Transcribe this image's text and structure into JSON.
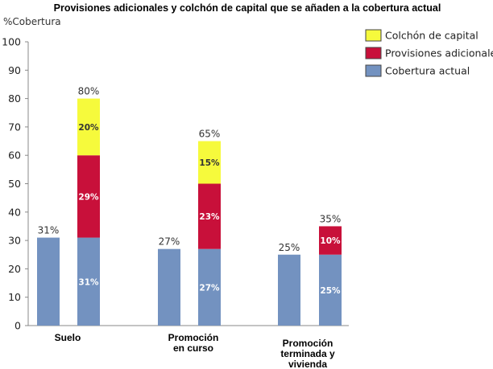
{
  "chart_data": {
    "type": "bar",
    "stacked": true,
    "title": "Provisiones adicionales y colchón de capital  que se añaden a la cobertura actual",
    "ylabel": "%Cobertura",
    "xlabel": "",
    "ylim": [
      0,
      100
    ],
    "yticks": [
      0,
      10,
      20,
      30,
      40,
      50,
      60,
      70,
      80,
      90,
      100
    ],
    "grid": false,
    "legend_position": "top-right",
    "categories": [
      [
        "Suelo"
      ],
      [
        "Promoción",
        "en curso"
      ],
      [
        "Promoción",
        "terminada y",
        "vivienda"
      ]
    ],
    "series": [
      {
        "name": "Cobertura actual",
        "color": "#7392c0",
        "values": [
          31,
          27,
          25
        ],
        "value_labels": [
          "31%",
          "27%",
          "25%"
        ],
        "label_color": "#ffffff"
      },
      {
        "name": "Provisiones adicionales",
        "color": "#c8103a",
        "values": [
          29,
          23,
          10
        ],
        "value_labels": [
          "29%",
          "23%",
          "10%"
        ],
        "label_color": "#ffffff"
      },
      {
        "name": "Colchón de capital",
        "color": "#f6fa3c",
        "values": [
          20,
          15,
          0
        ],
        "value_labels": [
          "20%",
          "15%",
          ""
        ],
        "label_color": "#333333"
      }
    ],
    "reference_bars": {
      "values": [
        31,
        27,
        25
      ],
      "labels": [
        "31%",
        "27%",
        "25%"
      ],
      "color": "#7392c0"
    },
    "totals": {
      "values": [
        80,
        65,
        35
      ],
      "labels": [
        "80%",
        "65%",
        "35%"
      ]
    },
    "legend_order": [
      "Colchón de capital",
      "Provisiones adicionales",
      "Cobertura actual"
    ]
  }
}
